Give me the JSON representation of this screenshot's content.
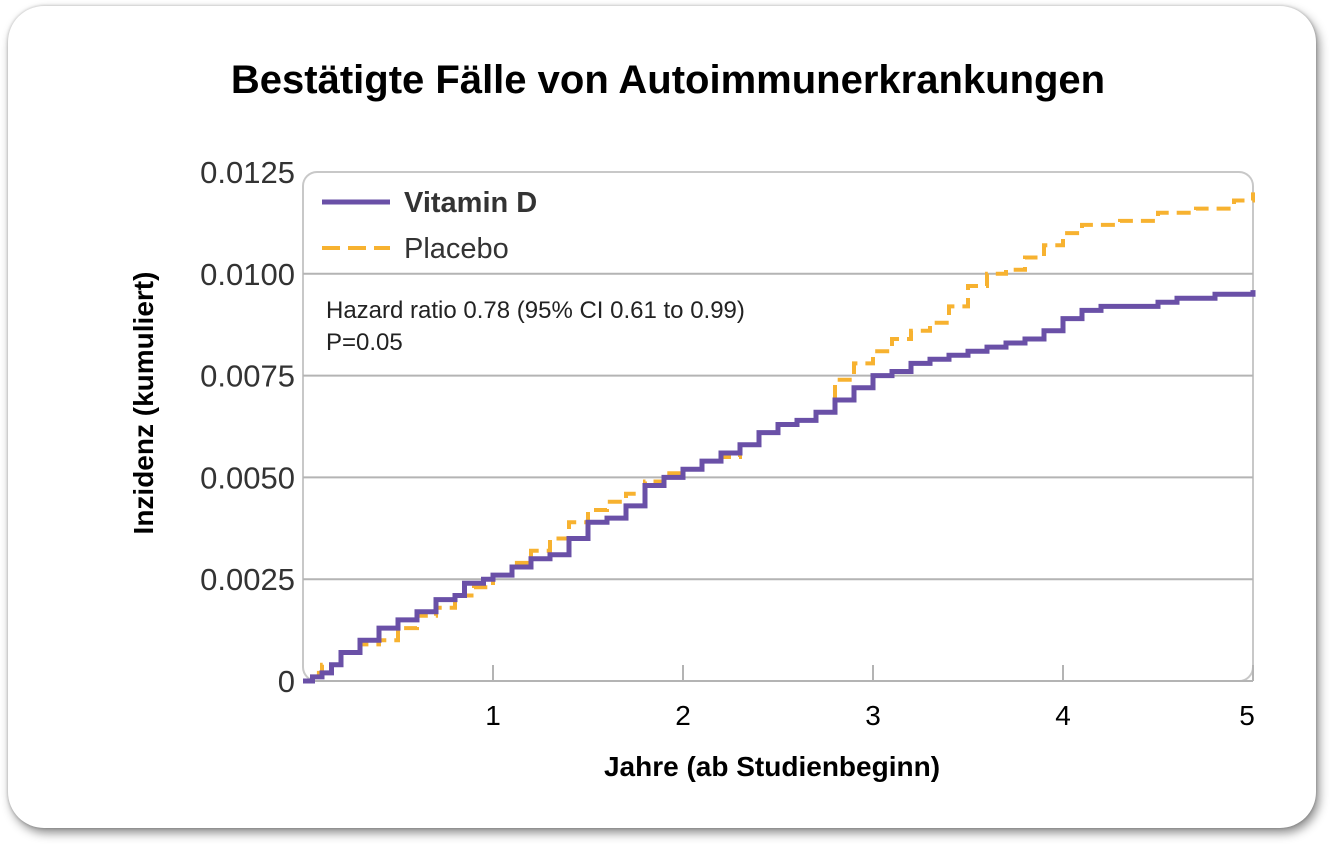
{
  "chart_data": {
    "type": "line",
    "title": "Bestätigte Fälle von Autoimmunerkrankungen",
    "xlabel": "Jahre (ab Studienbeginn)",
    "ylabel": "Inzidenz (kumuliert)",
    "xlim": [
      0,
      5
    ],
    "ylim": [
      0,
      0.0125
    ],
    "x_ticks": [
      1,
      2,
      3,
      4,
      5
    ],
    "y_ticks": [
      0,
      0.0025,
      0.005,
      0.0075,
      0.01,
      0.0125
    ],
    "x_tick_labels": [
      "1",
      "2",
      "3",
      "4",
      "5"
    ],
    "y_tick_labels": [
      "0",
      "0.0025",
      "0.0050",
      "0.0075",
      "0.0100",
      "0.0125"
    ],
    "grid": true,
    "legend": "top-left",
    "annotation": {
      "line1": "Hazard ratio 0.78 (95% CI 0.61 to 0.99)",
      "line2": "P=0.05"
    },
    "series": [
      {
        "name": "Vitamin D",
        "color": "#6a50a7",
        "style": "solid",
        "x": [
          0,
          0.05,
          0.1,
          0.15,
          0.2,
          0.3,
          0.4,
          0.5,
          0.6,
          0.7,
          0.8,
          0.85,
          0.95,
          1.0,
          1.1,
          1.2,
          1.3,
          1.4,
          1.5,
          1.6,
          1.7,
          1.8,
          1.9,
          2.0,
          2.1,
          2.2,
          2.3,
          2.4,
          2.5,
          2.6,
          2.7,
          2.8,
          2.9,
          3.0,
          3.1,
          3.2,
          3.3,
          3.4,
          3.5,
          3.6,
          3.7,
          3.8,
          3.9,
          4.0,
          4.1,
          4.2,
          4.5,
          4.6,
          4.8,
          5.0
        ],
        "y": [
          0,
          0.0001,
          0.0002,
          0.0004,
          0.0007,
          0.001,
          0.0013,
          0.0015,
          0.0017,
          0.002,
          0.0021,
          0.0024,
          0.0025,
          0.0026,
          0.0028,
          0.003,
          0.0031,
          0.0035,
          0.0039,
          0.004,
          0.0043,
          0.0048,
          0.005,
          0.0052,
          0.0054,
          0.0056,
          0.0058,
          0.0061,
          0.0063,
          0.0064,
          0.0066,
          0.0069,
          0.0072,
          0.0075,
          0.0076,
          0.0078,
          0.0079,
          0.008,
          0.0081,
          0.0082,
          0.0083,
          0.0084,
          0.0086,
          0.0089,
          0.0091,
          0.0092,
          0.0093,
          0.0094,
          0.0095,
          0.0096
        ]
      },
      {
        "name": "Placebo",
        "color": "#f7b230",
        "style": "dashed",
        "x": [
          0,
          0.05,
          0.1,
          0.2,
          0.3,
          0.4,
          0.5,
          0.6,
          0.7,
          0.8,
          0.9,
          1.0,
          1.1,
          1.2,
          1.3,
          1.4,
          1.5,
          1.6,
          1.7,
          1.8,
          1.9,
          2.0,
          2.1,
          2.2,
          2.3,
          2.4,
          2.5,
          2.6,
          2.7,
          2.8,
          2.9,
          3.0,
          3.1,
          3.2,
          3.3,
          3.4,
          3.5,
          3.6,
          3.7,
          3.8,
          3.9,
          4.0,
          4.1,
          4.3,
          4.5,
          4.7,
          4.9,
          5.0
        ],
        "y": [
          0,
          0.0002,
          0.0004,
          0.0007,
          0.0009,
          0.001,
          0.0013,
          0.0016,
          0.0018,
          0.0021,
          0.0023,
          0.0026,
          0.0029,
          0.0032,
          0.0035,
          0.0039,
          0.0042,
          0.0044,
          0.0046,
          0.0049,
          0.0051,
          0.0052,
          0.0054,
          0.0055,
          0.0058,
          0.0061,
          0.0063,
          0.0064,
          0.0066,
          0.0074,
          0.0078,
          0.0081,
          0.0084,
          0.0086,
          0.0088,
          0.0092,
          0.0097,
          0.01,
          0.0101,
          0.0104,
          0.0107,
          0.011,
          0.0112,
          0.0113,
          0.0115,
          0.0116,
          0.0118,
          0.012
        ]
      }
    ]
  }
}
